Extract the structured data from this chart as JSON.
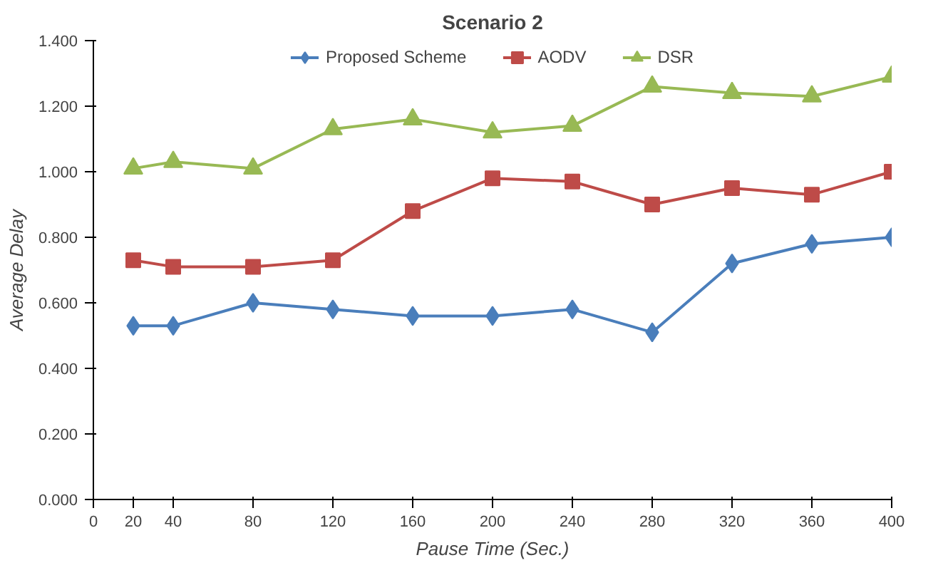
{
  "chart_data": {
    "type": "line",
    "title": "Scenario 2",
    "xlabel": "Pause Time (Sec.)",
    "ylabel": "Average Delay",
    "x": [
      20,
      40,
      80,
      120,
      160,
      200,
      240,
      280,
      320,
      360,
      400
    ],
    "series": [
      {
        "name": "Proposed Scheme",
        "color": "#4a7ebb",
        "marker": "diamond",
        "values": [
          0.53,
          0.53,
          0.6,
          0.58,
          0.56,
          0.56,
          0.58,
          0.51,
          0.72,
          0.78,
          0.8
        ]
      },
      {
        "name": "AODV",
        "color": "#be4b48",
        "marker": "square",
        "values": [
          0.73,
          0.71,
          0.71,
          0.73,
          0.88,
          0.98,
          0.97,
          0.9,
          0.95,
          0.93,
          1.0
        ]
      },
      {
        "name": "DSR",
        "color": "#98b954",
        "marker": "triangle",
        "values": [
          1.01,
          1.03,
          1.01,
          1.13,
          1.16,
          1.12,
          1.14,
          1.26,
          1.24,
          1.23,
          1.29
        ]
      }
    ],
    "xlim": [
      0,
      400
    ],
    "xticks": [
      0,
      20,
      40,
      80,
      120,
      160,
      200,
      240,
      280,
      320,
      360,
      400
    ],
    "ylim": [
      0,
      1.4
    ],
    "yticks": [
      {
        "value": 0,
        "label": "0.000"
      },
      {
        "value": 0.2,
        "label": "0.200"
      },
      {
        "value": 0.4,
        "label": "0.400"
      },
      {
        "value": 0.6,
        "label": "0.600"
      },
      {
        "value": 0.8,
        "label": "0.800"
      },
      {
        "value": 1.0,
        "label": "1.000"
      },
      {
        "value": 1.2,
        "label": "1.200"
      },
      {
        "value": 1.4,
        "label": "1.400"
      }
    ],
    "legend": "top",
    "grid": false,
    "line_style": "solid"
  }
}
